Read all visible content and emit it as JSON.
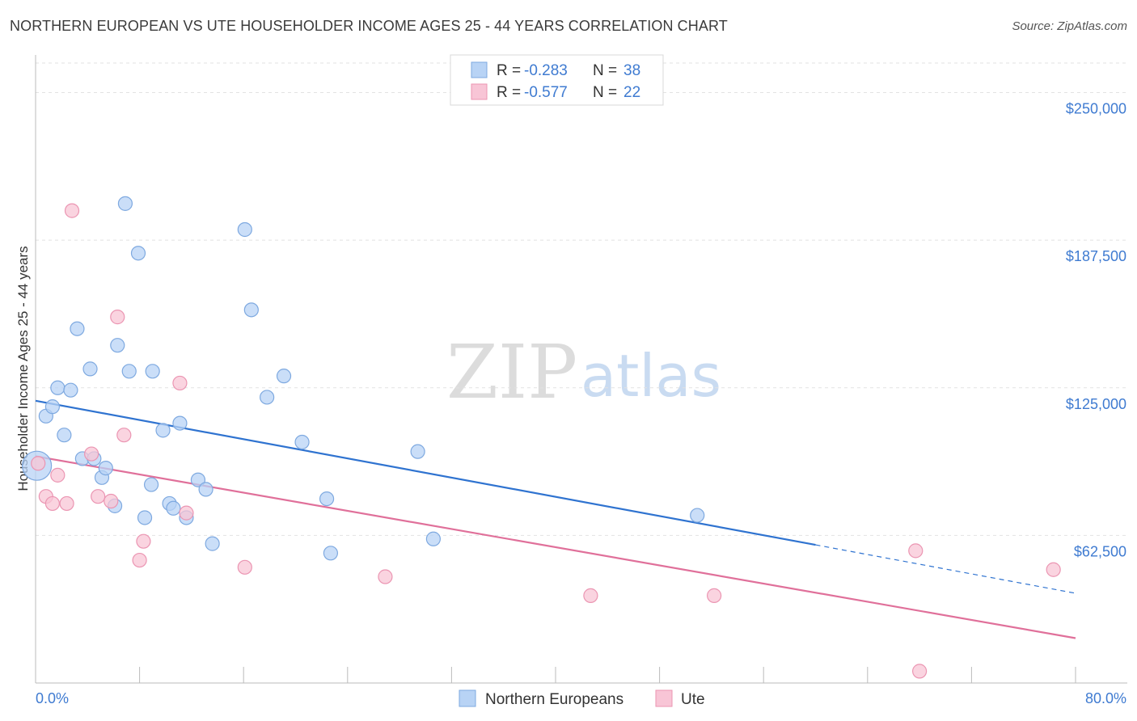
{
  "header": {
    "title": "NORTHERN EUROPEAN VS UTE HOUSEHOLDER INCOME AGES 25 - 44 YEARS CORRELATION CHART",
    "source": "Source: ZipAtlas.com"
  },
  "watermark": {
    "zip": "ZIP",
    "atlas": "atlas"
  },
  "colors": {
    "blue_fill": "#b8d3f5",
    "blue_stroke": "#7ea9e0",
    "blue_line": "#2f73d0",
    "pink_fill": "#f8c5d6",
    "pink_stroke": "#eb95b2",
    "pink_line": "#e0709a",
    "tick_text": "#3f7bd1",
    "grid": "#e2e2e2"
  },
  "legend": {
    "rows": [
      {
        "r_label": "R =",
        "r_value": "-0.283",
        "n_label": "N =",
        "n_value": "38"
      },
      {
        "r_label": "R =",
        "r_value": "-0.577",
        "n_label": "N =",
        "n_value": "22"
      }
    ]
  },
  "chart_data": {
    "type": "scatter",
    "title": "NORTHERN EUROPEAN VS UTE HOUSEHOLDER INCOME AGES 25 - 44 YEARS CORRELATION CHART",
    "xlabel": "",
    "ylabel": "Householder Income Ages 25 - 44 years",
    "xlim": [
      0,
      80
    ],
    "ylim": [
      0,
      262500
    ],
    "x_tick_labels": [
      "0.0%",
      "80.0%"
    ],
    "y_ticks": [
      62500,
      125000,
      187500,
      250000
    ],
    "y_tick_labels": [
      "$62,500",
      "$125,000",
      "$187,500",
      "$250,000"
    ],
    "grid": true,
    "legend_position": "top-center",
    "series": [
      {
        "name": "Northern Europeans",
        "color": "blue",
        "points": [
          [
            0.1,
            92000
          ],
          [
            0.8,
            113000
          ],
          [
            1.3,
            117000
          ],
          [
            1.7,
            125000
          ],
          [
            2.2,
            105000
          ],
          [
            2.7,
            124000
          ],
          [
            3.2,
            150000
          ],
          [
            3.6,
            95000
          ],
          [
            4.2,
            133000
          ],
          [
            4.5,
            95000
          ],
          [
            5.1,
            87000
          ],
          [
            5.4,
            91000
          ],
          [
            6.1,
            75000
          ],
          [
            6.3,
            143000
          ],
          [
            6.9,
            203000
          ],
          [
            7.2,
            132000
          ],
          [
            7.9,
            182000
          ],
          [
            8.4,
            70000
          ],
          [
            8.9,
            84000
          ],
          [
            9.0,
            132000
          ],
          [
            9.8,
            107000
          ],
          [
            10.3,
            76000
          ],
          [
            10.6,
            74000
          ],
          [
            11.1,
            110000
          ],
          [
            11.6,
            70000
          ],
          [
            12.5,
            86000
          ],
          [
            13.1,
            82000
          ],
          [
            13.6,
            59000
          ],
          [
            16.1,
            192000
          ],
          [
            16.6,
            158000
          ],
          [
            17.8,
            121000
          ],
          [
            19.1,
            130000
          ],
          [
            20.5,
            102000
          ],
          [
            22.4,
            78000
          ],
          [
            22.7,
            55000
          ],
          [
            29.4,
            98000
          ],
          [
            30.6,
            61000
          ],
          [
            50.9,
            71000
          ]
        ],
        "trend": {
          "x": [
            0,
            60
          ],
          "y": [
            119500,
            58500
          ]
        },
        "trend_extension": {
          "x": [
            60,
            80
          ],
          "y": [
            58500,
            38000
          ]
        }
      },
      {
        "name": "Ute",
        "color": "pink",
        "points": [
          [
            0.2,
            93000
          ],
          [
            0.8,
            79000
          ],
          [
            1.3,
            76000
          ],
          [
            1.7,
            88000
          ],
          [
            2.4,
            76000
          ],
          [
            2.8,
            200000
          ],
          [
            4.3,
            97000
          ],
          [
            4.8,
            79000
          ],
          [
            5.8,
            77000
          ],
          [
            6.3,
            155000
          ],
          [
            6.8,
            105000
          ],
          [
            8.0,
            52000
          ],
          [
            8.3,
            60000
          ],
          [
            11.1,
            127000
          ],
          [
            11.6,
            72000
          ],
          [
            16.1,
            49000
          ],
          [
            26.9,
            45000
          ],
          [
            42.7,
            37000
          ],
          [
            52.2,
            37000
          ],
          [
            67.7,
            56000
          ],
          [
            68.0,
            5000
          ],
          [
            78.3,
            48000
          ]
        ],
        "trend": {
          "x": [
            0,
            80
          ],
          "y": [
            96000,
            19000
          ]
        }
      }
    ]
  }
}
